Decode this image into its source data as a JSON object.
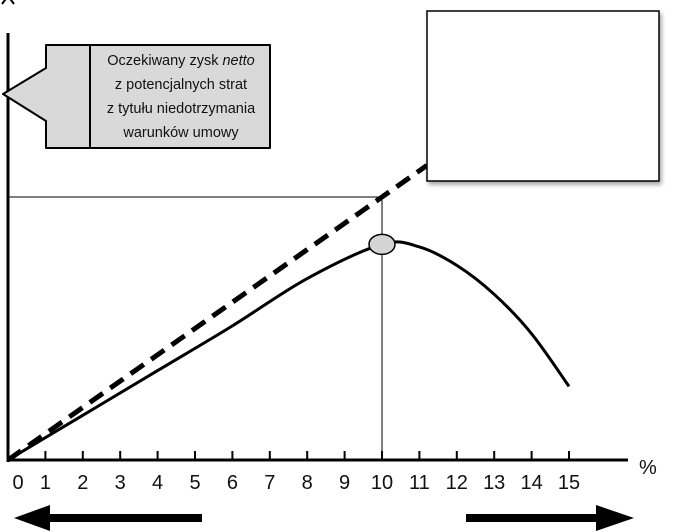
{
  "callout": {
    "lines": [
      [
        {
          "text": "Oczekiwany zysk ",
          "italic": false
        },
        {
          "text": "netto",
          "italic": true
        }
      ],
      [
        {
          "text": "z potencjalnych strat",
          "italic": false
        }
      ],
      [
        {
          "text": "z tytułu niedotrzymania",
          "italic": false
        }
      ],
      [
        {
          "text": "warunków umowy",
          "italic": false
        }
      ]
    ]
  },
  "x_unit_label": "%",
  "chart_data": {
    "type": "line",
    "x_ticks": [
      "0",
      "1",
      "2",
      "3",
      "4",
      "5",
      "6",
      "7",
      "8",
      "9",
      "10",
      "11",
      "12",
      "13",
      "14",
      "15"
    ],
    "xlim": [
      0,
      15
    ],
    "series": [
      {
        "style": "dashed",
        "x": [
          0,
          10,
          11.2
        ],
        "y": [
          0,
          1.0,
          1.12
        ]
      },
      {
        "style": "solid",
        "x": [
          0,
          2,
          4,
          6,
          8,
          10,
          11,
          12,
          13,
          14,
          15
        ],
        "y": [
          0,
          0.17,
          0.34,
          0.51,
          0.69,
          0.82,
          0.81,
          0.74,
          0.63,
          0.48,
          0.28
        ]
      }
    ],
    "optimum_marker": {
      "x": 10,
      "y": 0.82
    },
    "reference_line": {
      "x": 10,
      "y": 1.0
    },
    "colors": {
      "line": "#000000",
      "callout_fill": "#d9d9d9",
      "marker_fill": "#d4d4d4"
    }
  }
}
